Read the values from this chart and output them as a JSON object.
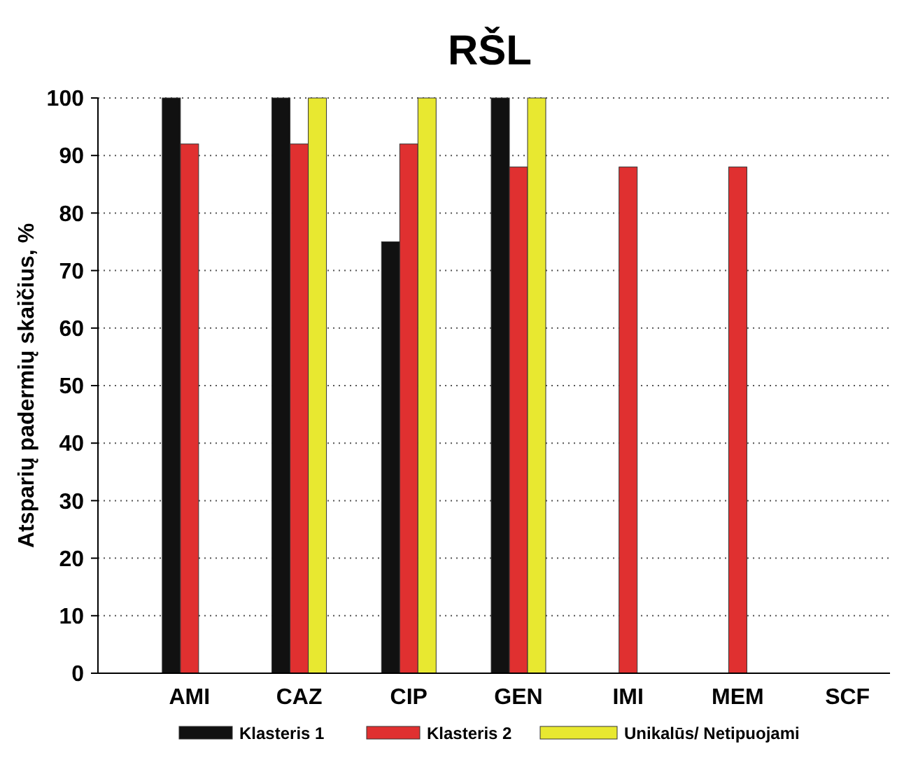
{
  "chart_data": {
    "type": "bar",
    "title": "RŠL",
    "ylabel": "Atsparių padermių skaičius, %",
    "categories": [
      "AMI",
      "CAZ",
      "CIP",
      "GEN",
      "IMI",
      "MEM",
      "SCF"
    ],
    "series": [
      {
        "name": "Klasteris 1",
        "color": "#111111",
        "values": [
          100,
          100,
          75,
          100,
          null,
          null,
          null
        ]
      },
      {
        "name": "Klasteris 2",
        "color": "#e03030",
        "values": [
          92,
          92,
          92,
          88,
          88,
          88,
          null
        ]
      },
      {
        "name": "Unikalūs/ Netipuojami",
        "color": "#e8e830",
        "values": [
          null,
          100,
          100,
          100,
          null,
          null,
          null
        ]
      }
    ],
    "ylim": [
      0,
      100
    ],
    "yticks": [
      0,
      10,
      20,
      30,
      40,
      50,
      60,
      70,
      80,
      90,
      100
    ],
    "grid": "y",
    "legend": "bottom"
  }
}
